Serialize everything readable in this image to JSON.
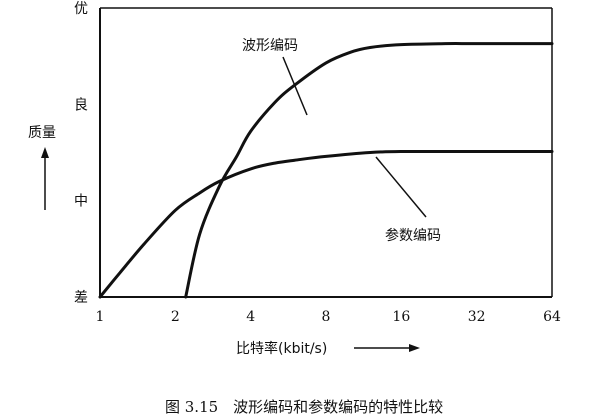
{
  "chart_data": {
    "type": "line",
    "title": "",
    "caption": "图 3.15　波形编码和参数编码的特性比较",
    "xlabel": "比特率(kbit/s)",
    "ylabel": "质量",
    "x_scale": "log2",
    "x_ticks": [
      1,
      2,
      4,
      8,
      16,
      32,
      64
    ],
    "x_tick_labels": [
      "1",
      "2",
      "4",
      "8",
      "16",
      "32",
      "64"
    ],
    "xlim": [
      1,
      64
    ],
    "y_ticks": [
      0,
      1,
      2,
      3
    ],
    "y_tick_labels": [
      "差",
      "中",
      "良",
      "优"
    ],
    "ylim": [
      0,
      3
    ],
    "grid": false,
    "series": [
      {
        "name": "波形编码",
        "x": [
          2.2,
          2.5,
          3,
          3.5,
          4,
          5,
          6,
          8,
          10,
          12,
          16,
          24,
          32,
          64
        ],
        "y": [
          0,
          0.65,
          1.15,
          1.45,
          1.72,
          2.02,
          2.2,
          2.43,
          2.54,
          2.59,
          2.62,
          2.63,
          2.63,
          2.63
        ]
      },
      {
        "name": "参数编码",
        "x": [
          1,
          1.2,
          1.5,
          2,
          2.5,
          3,
          4,
          5,
          6,
          8,
          12,
          16,
          32,
          64
        ],
        "y": [
          0,
          0.25,
          0.55,
          0.9,
          1.08,
          1.2,
          1.33,
          1.39,
          1.42,
          1.46,
          1.5,
          1.51,
          1.51,
          1.51
        ]
      }
    ],
    "annotations": [
      "波形编码",
      "参数编码"
    ]
  }
}
